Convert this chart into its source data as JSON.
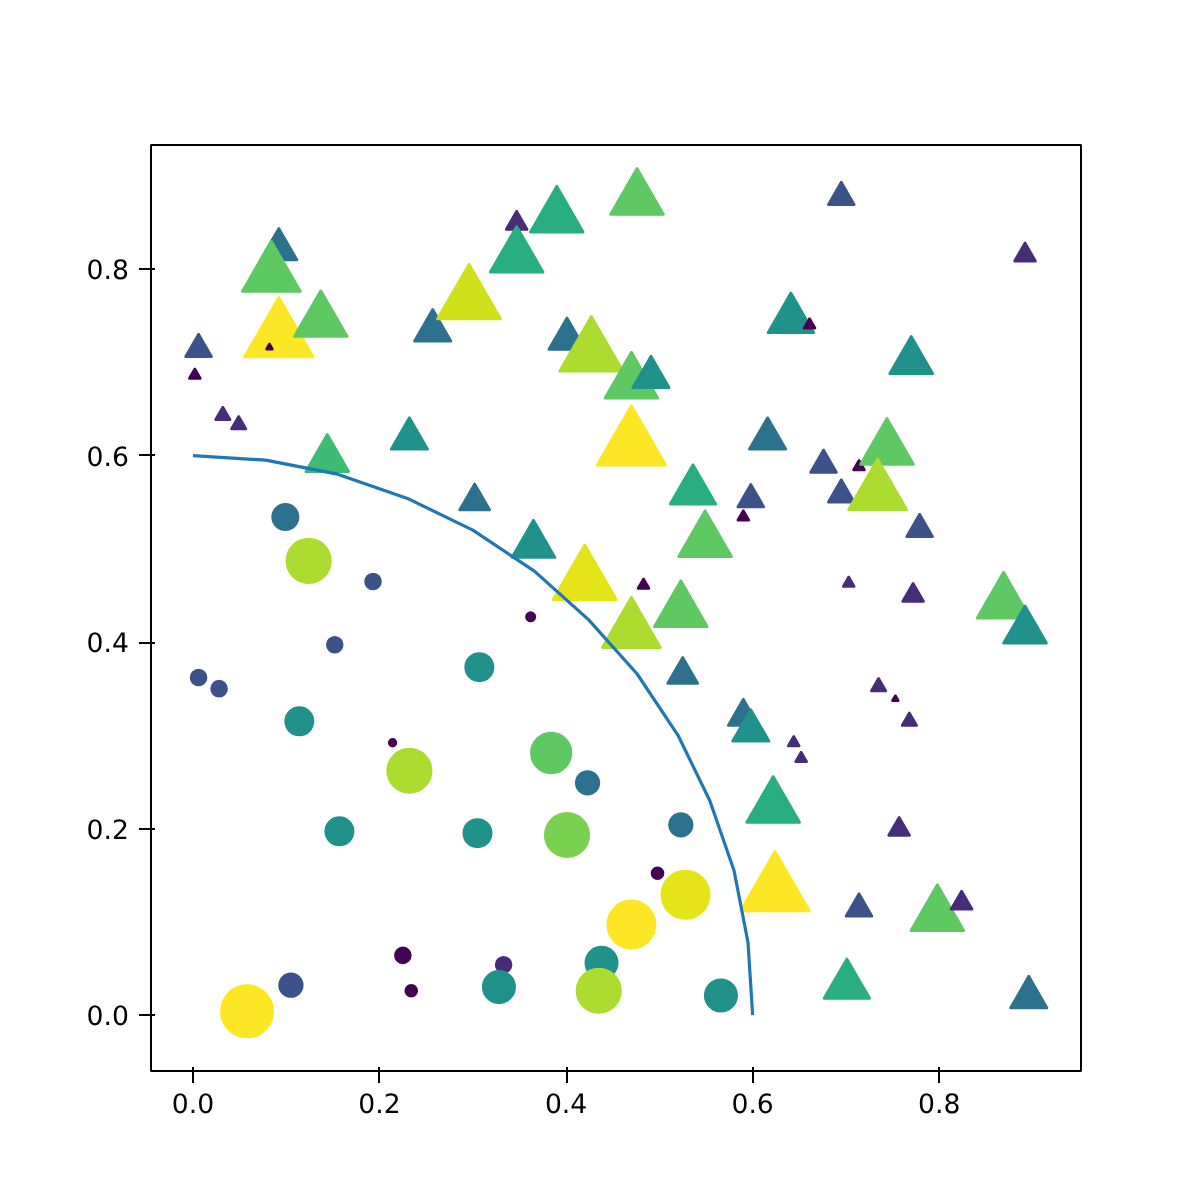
{
  "chart_data": {
    "type": "bubble",
    "xlim": [
      -0.045,
      0.952
    ],
    "ylim": [
      -0.06,
      0.933
    ],
    "xticks": [
      {
        "value": 0,
        "label": "0.0"
      },
      0.2,
      0.4,
      0.6,
      0.8
    ],
    "yticks": [
      {
        "value": 0,
        "label": "0.0"
      },
      0.2,
      0.4,
      0.6,
      0.8
    ],
    "grid": false,
    "series": [
      {
        "marker": "circle",
        "x": [
          0.058,
          0.099,
          0.124,
          0.193,
          0.152,
          0.006,
          0.028,
          0.114,
          0.307,
          0.214,
          0.232,
          0.384,
          0.423,
          0.157,
          0.305,
          0.401,
          0.105,
          0.225,
          0.234,
          0.333,
          0.328,
          0.438,
          0.435,
          0.47,
          0.528,
          0.523,
          0.498,
          0.566,
          0.362
        ],
        "values": [
          0.004,
          0.534,
          0.487,
          0.465,
          0.397,
          0.362,
          0.35,
          0.315,
          0.373,
          0.292,
          0.262,
          0.281,
          0.249,
          0.197,
          0.195,
          0.193,
          0.032,
          0.064,
          0.026,
          0.054,
          0.03,
          0.056,
          0.026,
          0.097,
          0.129,
          0.204,
          0.152,
          0.021,
          0.427
        ],
        "sizes": [
          1,
          0.25,
          0.72,
          0.09,
          0.09,
          0.09,
          0.09,
          0.29,
          0.29,
          0.02,
          0.72,
          0.6,
          0.2,
          0.29,
          0.29,
          0.72,
          0.2,
          0.09,
          0.05,
          0.09,
          0.38,
          0.38,
          0.72,
          0.85,
          0.85,
          0.2,
          0.05,
          0.38,
          0.03
        ],
        "colors": [
          "#fde725",
          "#2c728e",
          "#addc30",
          "#3b528b",
          "#3b528b",
          "#3b528b",
          "#3b528b",
          "#21918c",
          "#21918c",
          "#440154",
          "#addc30",
          "#5ec962",
          "#2c728e",
          "#21918c",
          "#21918c",
          "#7ad151",
          "#3b528b",
          "#440154",
          "#440154",
          "#472c7a",
          "#21918c",
          "#21918c",
          "#addc30",
          "#fde725",
          "#e5e419",
          "#2c728e",
          "#440154",
          "#21918c",
          "#440154"
        ]
      },
      {
        "marker": "triangle",
        "x": [
          0.006,
          0.002,
          0.032,
          0.049,
          0.092,
          0.084,
          0.092,
          0.082,
          0.137,
          0.144,
          0.232,
          0.257,
          0.296,
          0.347,
          0.347,
          0.39,
          0.401,
          0.427,
          0.302,
          0.365,
          0.42,
          0.476,
          0.47,
          0.491,
          0.47,
          0.536,
          0.549,
          0.523,
          0.47,
          0.483,
          0.525,
          0.59,
          0.598,
          0.616,
          0.641,
          0.661,
          0.676,
          0.695,
          0.714,
          0.744,
          0.734,
          0.695,
          0.892,
          0.77,
          0.779,
          0.772,
          0.703,
          0.869,
          0.892,
          0.59,
          0.598,
          0.644,
          0.652,
          0.735,
          0.753,
          0.768,
          0.622,
          0.757,
          0.624,
          0.714,
          0.798,
          0.824,
          0.701,
          0.896
        ],
        "values": [
          0.714,
          0.686,
          0.643,
          0.633,
          0.821,
          0.794,
          0.727,
          0.716,
          0.744,
          0.596,
          0.618,
          0.734,
          0.766,
          0.849,
          0.813,
          0.856,
          0.725,
          0.71,
          0.551,
          0.504,
          0.465,
          0.875,
          0.678,
          0.684,
          0.611,
          0.562,
          0.508,
          0.433,
          0.412,
          0.461,
          0.365,
          0.534,
          0.553,
          0.618,
          0.746,
          0.74,
          0.59,
          0.558,
          0.588,
          0.607,
          0.56,
          0.877,
          0.815,
          0.701,
          0.521,
          0.45,
          0.463,
          0.442,
          0.412,
          0.32,
          0.305,
          0.292,
          0.275,
          0.352,
          0.339,
          0.315,
          0.223,
          0.199,
          0.133,
          0.114,
          0.107,
          0.12,
          0.032,
          0.019
        ],
        "sizes": [
          0.15,
          0.03,
          0.05,
          0.05,
          0.29,
          0.72,
          1,
          0.01,
          0.6,
          0.4,
          0.29,
          0.29,
          0.85,
          0.1,
          0.6,
          0.6,
          0.29,
          0.85,
          0.2,
          0.4,
          0.85,
          0.6,
          0.6,
          0.29,
          1,
          0.45,
          0.6,
          0.6,
          0.72,
          0.03,
          0.2,
          0.03,
          0.15,
          0.29,
          0.45,
          0.03,
          0.15,
          0.15,
          0.03,
          0.6,
          0.72,
          0.15,
          0.1,
          0.4,
          0.15,
          0.1,
          0.03,
          0.6,
          0.4,
          0.2,
          0.29,
          0.03,
          0.03,
          0.05,
          0.01,
          0.05,
          0.6,
          0.1,
          1,
          0.15,
          0.6,
          0.1,
          0.45,
          0.29
        ],
        "colors": [
          "#3b528b",
          "#440154",
          "#472c7a",
          "#472c7a",
          "#2c728e",
          "#5ec962",
          "#fde725",
          "#440154",
          "#5ec962",
          "#3fbc73",
          "#21918c",
          "#2c728e",
          "#d0e11c",
          "#472c7a",
          "#28ae80",
          "#28ae80",
          "#2c728e",
          "#addc30",
          "#2c728e",
          "#21918c",
          "#e5e419",
          "#5ec962",
          "#5ec962",
          "#21918c",
          "#fde725",
          "#28ae80",
          "#5ec962",
          "#5ec962",
          "#addc30",
          "#440154",
          "#2c728e",
          "#440154",
          "#3b528b",
          "#2c728e",
          "#21918c",
          "#440154",
          "#3b528b",
          "#3b528b",
          "#440154",
          "#5ec962",
          "#addc30",
          "#3b528b",
          "#472c7a",
          "#21918c",
          "#3b528b",
          "#472c7a",
          "#472c7a",
          "#5ec962",
          "#21918c",
          "#2c728e",
          "#21918c",
          "#472c7a",
          "#472c7a",
          "#472c7a",
          "#440154",
          "#472c7a",
          "#28ae80",
          "#472c7a",
          "#fde725",
          "#3b528b",
          "#5ec962",
          "#472c7a",
          "#28ae80",
          "#2c728e"
        ]
      },
      {
        "type": "line",
        "color": "#1f77b4",
        "line_style": "solid",
        "marker": "none",
        "x": [
          0,
          0.078,
          0.155,
          0.23,
          0.3,
          0.366,
          0.424,
          0.476,
          0.52,
          0.554,
          0.58,
          0.595,
          0.6
        ],
        "values": [
          0.6,
          0.595,
          0.58,
          0.554,
          0.52,
          0.476,
          0.424,
          0.366,
          0.3,
          0.23,
          0.155,
          0.078,
          0
        ]
      }
    ]
  }
}
